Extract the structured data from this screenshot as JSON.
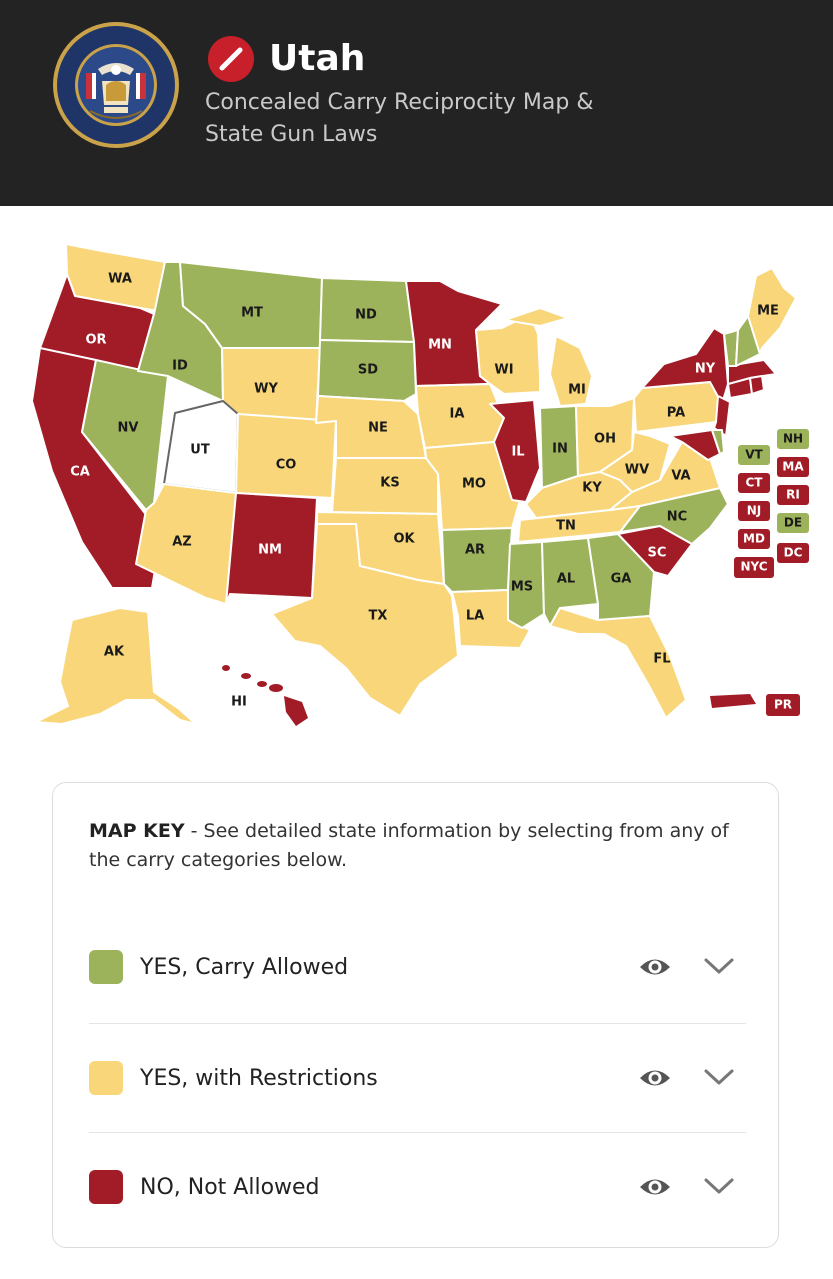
{
  "header": {
    "seal_lettering": "THE GREAT SEAL OF THE STATE OF UTAH 1896",
    "state_name": "Utah",
    "subtitle": "Concealed Carry Reciprocity Map & State Gun Laws"
  },
  "colors": {
    "header_bg": "#232323",
    "yes": "#9db35b",
    "restricted": "#f8d679",
    "no": "#a11c26",
    "home": "#ffffff"
  },
  "map": {
    "labels": {
      "WA": "WA",
      "OR": "OR",
      "CA": "CA",
      "ID": "ID",
      "NV": "NV",
      "MT": "MT",
      "WY": "WY",
      "UT": "UT",
      "AZ": "AZ",
      "CO": "CO",
      "NM": "NM",
      "ND": "ND",
      "SD": "SD",
      "NE": "NE",
      "KS": "KS",
      "OK": "OK",
      "TX": "TX",
      "MN": "MN",
      "IA": "IA",
      "MO": "MO",
      "AR": "AR",
      "LA": "LA",
      "WI": "WI",
      "IL": "IL",
      "MI": "MI",
      "IN": "IN",
      "OH": "OH",
      "KY": "KY",
      "TN": "TN",
      "MS": "MS",
      "AL": "AL",
      "GA": "GA",
      "FL": "FL",
      "SC": "SC",
      "NC": "NC",
      "VA": "VA",
      "WV": "WV",
      "PA": "PA",
      "NY": "NY",
      "ME": "ME",
      "AK": "AK",
      "HI": "HI",
      "PR": "PR"
    },
    "small_states": [
      {
        "abbr": "VT",
        "status": "yes"
      },
      {
        "abbr": "NH",
        "status": "yes"
      },
      {
        "abbr": "MA",
        "status": "no"
      },
      {
        "abbr": "CT",
        "status": "no"
      },
      {
        "abbr": "RI",
        "status": "no"
      },
      {
        "abbr": "NJ",
        "status": "no"
      },
      {
        "abbr": "DE",
        "status": "yes"
      },
      {
        "abbr": "MD",
        "status": "no"
      },
      {
        "abbr": "DC",
        "status": "no"
      },
      {
        "abbr": "NYC",
        "status": "no"
      }
    ]
  },
  "map_key": {
    "title": "MAP KEY",
    "description": " - See detailed state information by selecting from any of the carry categories below.",
    "rows": [
      {
        "label": "YES, Carry Allowed",
        "eye_icon": "eye-icon",
        "chevron_icon": "chevron-down-icon"
      },
      {
        "label": "YES, with Restrictions",
        "eye_icon": "eye-icon",
        "chevron_icon": "chevron-down-icon"
      },
      {
        "label": "NO, Not Allowed",
        "eye_icon": "eye-icon",
        "chevron_icon": "chevron-down-icon"
      }
    ]
  }
}
